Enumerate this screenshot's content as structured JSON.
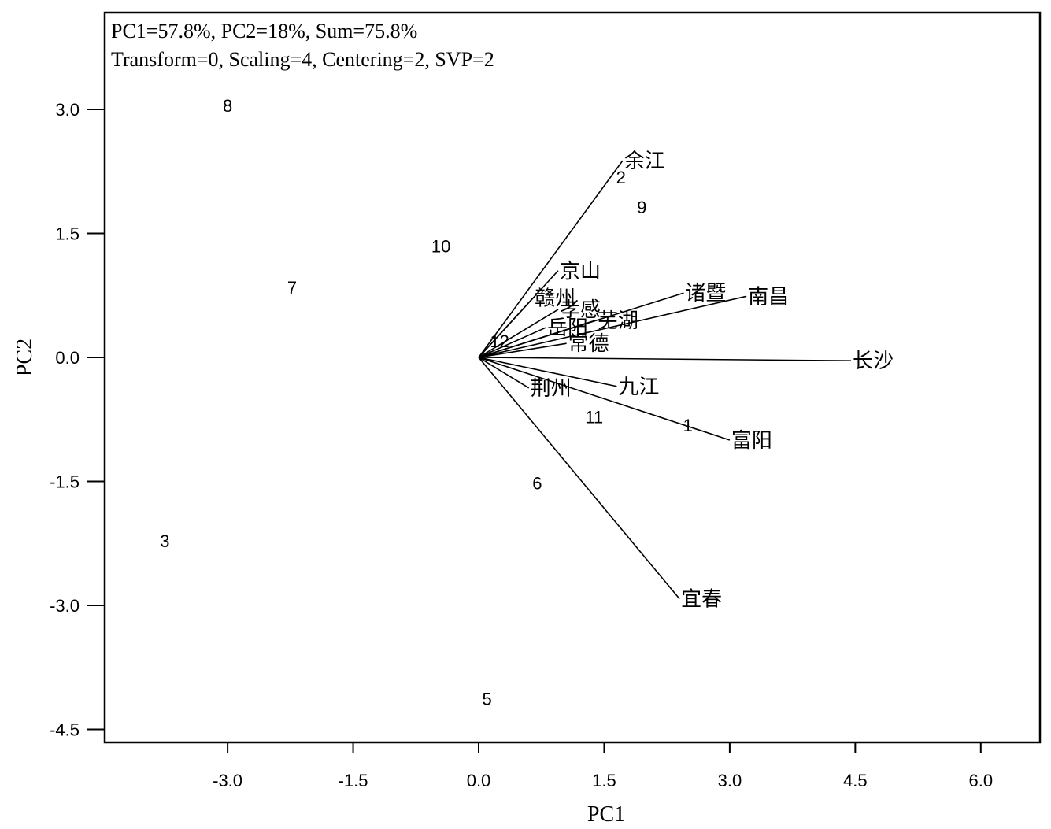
{
  "chart_data": {
    "type": "scatter",
    "subtype": "pca-biplot",
    "title": "",
    "summary_lines": [
      "PC1=57.8%, PC2=18%, Sum=75.8%",
      "Transform=0, Scaling=4, Centering=2, SVP=2"
    ],
    "xlabel": "PC1",
    "ylabel": "PC2",
    "xlim": [
      -4.5,
      6.7
    ],
    "ylim": [
      -4.65,
      4.0
    ],
    "xticks": [
      -3.0,
      -1.5,
      0.0,
      1.5,
      3.0,
      4.5,
      6.0
    ],
    "xtick_labels": [
      "-3.0",
      "-1.5",
      "0.0",
      "1.5",
      "3.0",
      "4.5",
      "6.0"
    ],
    "yticks": [
      3.0,
      1.5,
      0.0,
      -1.5,
      -3.0,
      -4.5
    ],
    "ytick_labels": [
      "3.0",
      "1.5",
      "0.0",
      "-1.5",
      "-3.0",
      "-4.5"
    ],
    "grid": false,
    "points": [
      {
        "label": "1",
        "x": 2.5,
        "y": -0.82
      },
      {
        "label": "2",
        "x": 1.7,
        "y": 2.18
      },
      {
        "label": "3",
        "x": -3.75,
        "y": -2.22
      },
      {
        "label": "5",
        "x": 0.1,
        "y": -4.13
      },
      {
        "label": "6",
        "x": 0.7,
        "y": -1.52
      },
      {
        "label": "7",
        "x": -2.23,
        "y": 0.85
      },
      {
        "label": "8",
        "x": -3.0,
        "y": 3.05
      },
      {
        "label": "9",
        "x": 1.95,
        "y": 1.82
      },
      {
        "label": "10",
        "x": -0.45,
        "y": 1.35
      },
      {
        "label": "11",
        "x": 1.38,
        "y": -0.72
      },
      {
        "label": "12",
        "x": 0.25,
        "y": 0.2
      }
    ],
    "vectors": [
      {
        "label": "余江",
        "x": 1.72,
        "y": 2.38
      },
      {
        "label": "京山",
        "x": 0.95,
        "y": 1.05
      },
      {
        "label": "赣州",
        "x": 0.65,
        "y": 0.72
      },
      {
        "label": "孝感",
        "x": 0.95,
        "y": 0.58
      },
      {
        "label": "岳阳",
        "x": 0.8,
        "y": 0.36
      },
      {
        "label": "芜湖",
        "x": 1.4,
        "y": 0.45
      },
      {
        "label": "常德",
        "x": 1.05,
        "y": 0.17
      },
      {
        "label": "诸暨",
        "x": 2.45,
        "y": 0.78
      },
      {
        "label": "南昌",
        "x": 3.2,
        "y": 0.74
      },
      {
        "label": "长沙",
        "x": 4.45,
        "y": -0.04
      },
      {
        "label": "九江",
        "x": 1.65,
        "y": -0.35
      },
      {
        "label": "荆州",
        "x": 0.6,
        "y": -0.37
      },
      {
        "label": "富阳",
        "x": 3.0,
        "y": -1.0
      },
      {
        "label": "宜春",
        "x": 2.4,
        "y": -2.92
      }
    ]
  }
}
